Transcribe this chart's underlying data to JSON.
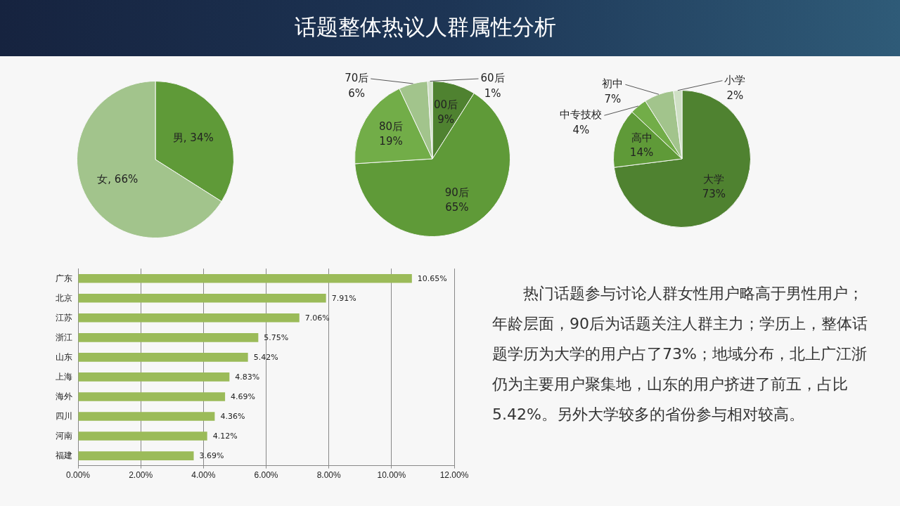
{
  "chart_data": [
    {
      "type": "pie",
      "categories": [
        "男",
        "女"
      ],
      "values": [
        34,
        66
      ],
      "colors": [
        "#5f9a38",
        "#a2c48c"
      ],
      "value_labels": [
        "34%",
        "66%"
      ]
    },
    {
      "type": "pie",
      "title": "话题整体热议人群属性分析",
      "categories": [
        "00后",
        "90后",
        "80后",
        "70后",
        "60后"
      ],
      "values": [
        9,
        65,
        19,
        6,
        1
      ],
      "colors": [
        "#4f8230",
        "#5f9a38",
        "#72ad48",
        "#a2c48c",
        "#cfe0c5"
      ],
      "value_labels": [
        "9%",
        "65%",
        "19%",
        "6%",
        "1%"
      ]
    },
    {
      "type": "pie",
      "categories": [
        "大学",
        "高中",
        "中专技校",
        "初中",
        "小学"
      ],
      "values": [
        73,
        14,
        4,
        7,
        2
      ],
      "colors": [
        "#4f8230",
        "#5f9a38",
        "#72ad48",
        "#a2c48c",
        "#cfe0c5"
      ],
      "value_labels": [
        "73%",
        "14%",
        "4%",
        "7%",
        "2%"
      ]
    },
    {
      "type": "bar",
      "orientation": "horizontal",
      "categories": [
        "广东",
        "北京",
        "江苏",
        "浙江",
        "山东",
        "上海",
        "海外",
        "四川",
        "河南",
        "福建"
      ],
      "values": [
        10.65,
        7.91,
        7.06,
        5.75,
        5.42,
        4.83,
        4.69,
        4.36,
        4.12,
        3.69
      ],
      "color": "#9bbb59",
      "value_labels": [
        "10.65%",
        "7.91%",
        "7.06%",
        "5.75%",
        "5.42%",
        "4.83%",
        "4.69%",
        "4.36%",
        "4.12%",
        "3.69%"
      ],
      "xlim": [
        0,
        12
      ],
      "xticks": [
        {
          "value": 0,
          "label": "0.00%"
        },
        {
          "value": 2,
          "label": "2.00%"
        },
        {
          "value": 4,
          "label": "4.00%"
        },
        {
          "value": 6,
          "label": "6.00%"
        },
        {
          "value": 8,
          "label": "8.00%"
        },
        {
          "value": 10,
          "label": "10.00%"
        },
        {
          "value": 12,
          "label": "12.00%"
        }
      ],
      "grid": "x"
    },
    {
      "type": "other",
      "annotations": [
        "热门话题参与讨论人群女性用户略高于男性用户；年龄层面，90后为话题关注人群主力；学历上，整体话题学历为大学的用户占了73%；地域分布，北上广江浙仍为主要用户聚集地，山东的用户挤进了前五，占比5.42%。另外大学较多的省份参与相对较高。"
      ]
    }
  ]
}
